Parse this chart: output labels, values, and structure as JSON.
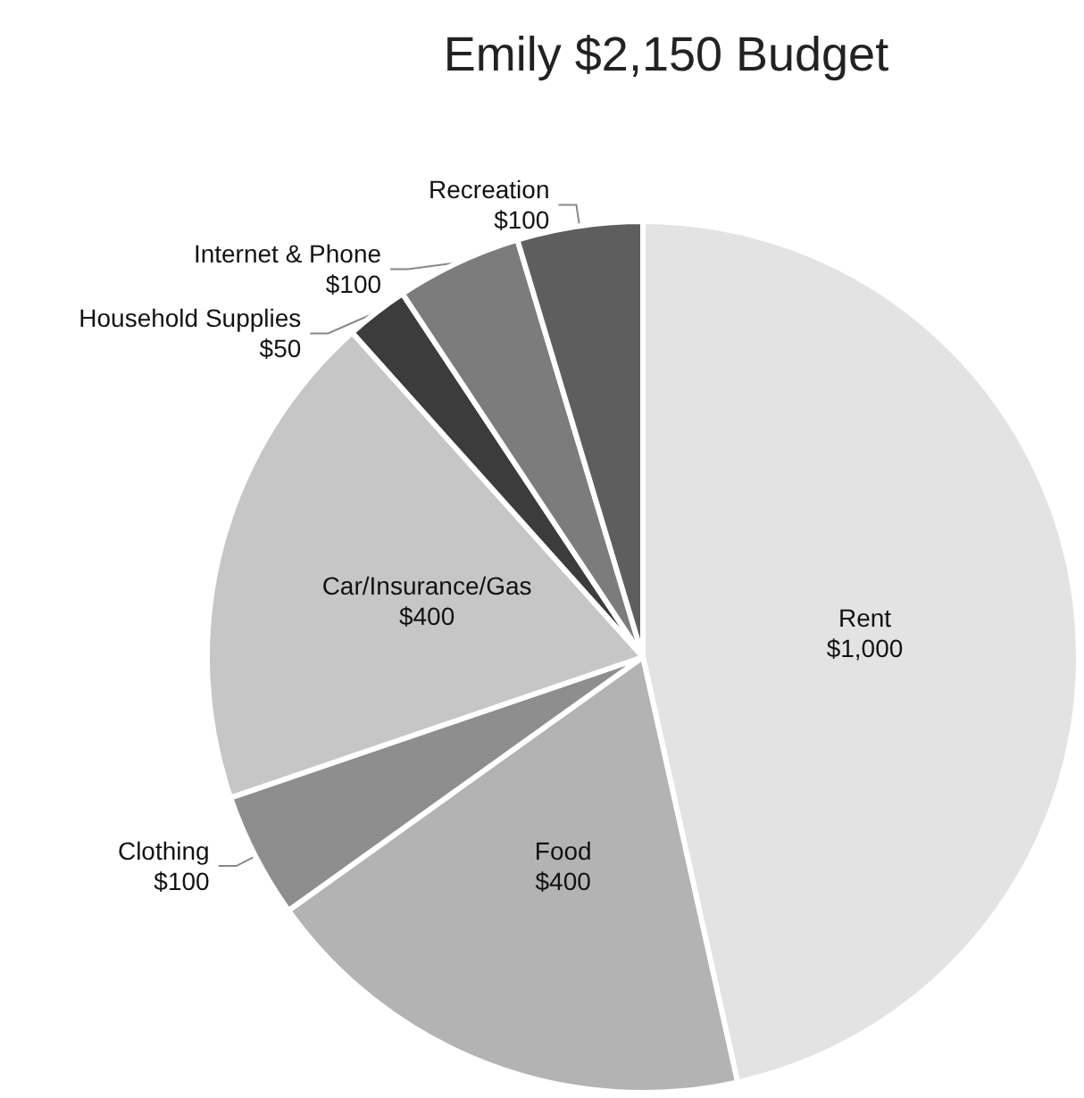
{
  "chart_data": {
    "type": "pie",
    "title": "Emily $2,150 Budget",
    "categories": [
      "Rent",
      "Food",
      "Clothing",
      "Car/Insurance/Gas",
      "Household Supplies",
      "Internet & Phone",
      "Recreation"
    ],
    "values": [
      1000,
      400,
      100,
      400,
      50,
      100,
      100
    ],
    "value_labels": [
      "$1,000",
      "$400",
      "$100",
      "$400",
      "$50",
      "$100",
      "$100"
    ],
    "colors": [
      "#e3e3e3",
      "#b3b3b3",
      "#8e8e8e",
      "#c6c6c6",
      "#3c3c3c",
      "#7c7c7c",
      "#5e5e5e"
    ],
    "legend": false
  }
}
